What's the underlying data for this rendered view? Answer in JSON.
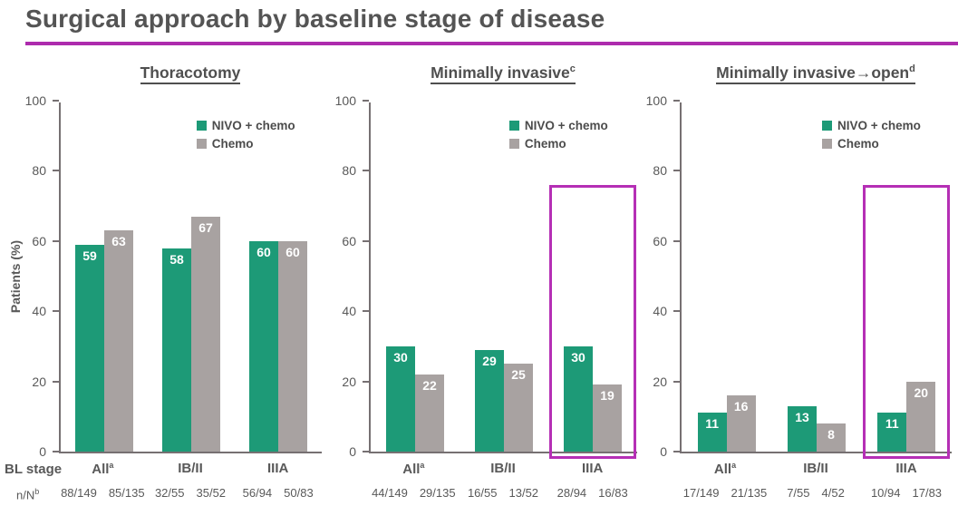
{
  "slide": {
    "title": "Surgical approach by baseline stage of disease"
  },
  "colors": {
    "accent_rule": "#ad2bad",
    "highlight_box": "#b52fb5",
    "nivo_green": "#1d9a77",
    "chemo_gray": "#a8a2a1",
    "text": "#595959"
  },
  "legend": {
    "items": [
      {
        "label": "NIVO + chemo",
        "color": "#1d9a77"
      },
      {
        "label": "Chemo",
        "color": "#a8a2a1"
      }
    ]
  },
  "axis": {
    "ylabel": "Patients (%)",
    "ticks": [
      0,
      20,
      40,
      60,
      80,
      100
    ],
    "row_labels": {
      "bl_stage": "BL stage",
      "n_over_N": "n/N",
      "n_over_N_sup": "b"
    }
  },
  "chart_data": [
    {
      "type": "bar",
      "title": "Thoracotomy",
      "title_sup": "",
      "ylabel": "Patients (%)",
      "ylim": [
        0,
        100
      ],
      "grid": false,
      "legend_position": "upper-right-inside",
      "categories": [
        "All",
        "IB/II",
        "IIIA"
      ],
      "category_sups": [
        "a",
        "",
        ""
      ],
      "series": [
        {
          "name": "NIVO + chemo",
          "color": "#1d9a77",
          "values": [
            59,
            58,
            60
          ]
        },
        {
          "name": "Chemo",
          "color": "#a8a2a1",
          "values": [
            63,
            67,
            60
          ]
        }
      ],
      "n_over_N": [
        [
          "88/149",
          "85/135"
        ],
        [
          "32/55",
          "35/52"
        ],
        [
          "56/94",
          "50/83"
        ]
      ],
      "highlight_group_index": null
    },
    {
      "type": "bar",
      "title": "Minimally invasive",
      "title_sup": "c",
      "ylabel": "",
      "ylim": [
        0,
        100
      ],
      "grid": false,
      "legend_position": "upper-right-inside",
      "categories": [
        "All",
        "IB/II",
        "IIIA"
      ],
      "category_sups": [
        "a",
        "",
        ""
      ],
      "series": [
        {
          "name": "NIVO + chemo",
          "color": "#1d9a77",
          "values": [
            30,
            29,
            30
          ]
        },
        {
          "name": "Chemo",
          "color": "#a8a2a1",
          "values": [
            22,
            25,
            19
          ]
        }
      ],
      "n_over_N": [
        [
          "44/149",
          "29/135"
        ],
        [
          "16/55",
          "13/52"
        ],
        [
          "28/94",
          "16/83"
        ]
      ],
      "highlight_group_index": 2
    },
    {
      "type": "bar",
      "title": "Minimally invasive→open",
      "title_sup": "d",
      "ylabel": "",
      "ylim": [
        0,
        100
      ],
      "grid": false,
      "legend_position": "upper-right-inside",
      "categories": [
        "All",
        "IB/II",
        "IIIA"
      ],
      "category_sups": [
        "a",
        "",
        ""
      ],
      "series": [
        {
          "name": "NIVO + chemo",
          "color": "#1d9a77",
          "values": [
            11,
            13,
            11
          ]
        },
        {
          "name": "Chemo",
          "color": "#a8a2a1",
          "values": [
            16,
            8,
            20
          ]
        }
      ],
      "n_over_N": [
        [
          "17/149",
          "21/135"
        ],
        [
          "7/55",
          "4/52"
        ],
        [
          "10/94",
          "17/83"
        ]
      ],
      "highlight_group_index": 2
    }
  ]
}
